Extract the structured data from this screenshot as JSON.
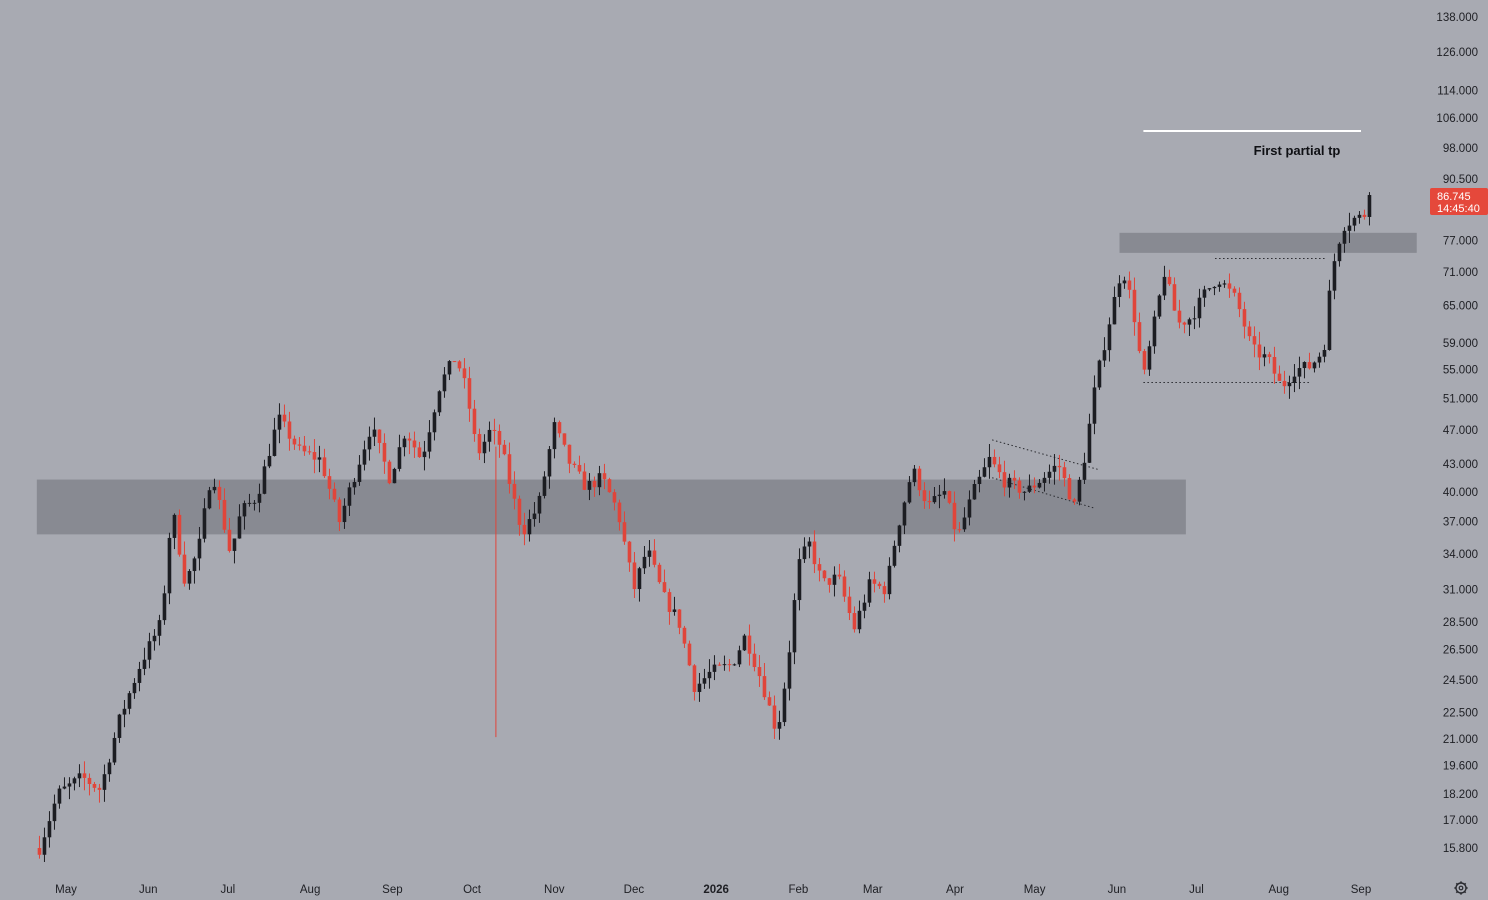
{
  "chart_data": {
    "type": "candlestick",
    "title": "",
    "xlabel": "",
    "ylabel": "",
    "y_scale": "log",
    "ylim": [
      14.5,
      142.0
    ],
    "x_tick_labels": [
      "May",
      "Jun",
      "Jul",
      "Aug",
      "Sep",
      "Oct",
      "Nov",
      "Dec",
      "2026",
      "Feb",
      "Mar",
      "Apr",
      "May",
      "Jun",
      "Jul",
      "Aug",
      "Sep"
    ],
    "x_tick_bold": "2026",
    "y_tick_labels": [
      "138.000",
      "126.000",
      "114.000",
      "106.000",
      "98.000",
      "90.500",
      "77.000",
      "71.000",
      "65.000",
      "59.000",
      "55.000",
      "51.000",
      "47.000",
      "43.000",
      "40.000",
      "37.000",
      "34.000",
      "31.000",
      "28.500",
      "26.500",
      "24.500",
      "22.500",
      "21.000",
      "19.600",
      "18.200",
      "17.000",
      "15.800"
    ],
    "last_price": "86.745",
    "countdown": "14:45:40",
    "series": [
      {
        "type": "candlestick",
        "up_color": "#1c1d22",
        "down_color": "#e0453a",
        "anchors": [
          {
            "date": "Apr 21 2025",
            "close": 15.8
          },
          {
            "date": "Apr 28 2025",
            "close": 18.2
          },
          {
            "date": "May 07 2025",
            "close": 19.0
          },
          {
            "date": "May 14 2025",
            "close": 18.4
          },
          {
            "date": "May 21 2025",
            "close": 22.0
          },
          {
            "date": "May 29 2025",
            "close": 25.5
          },
          {
            "date": "Jun 06 2025",
            "close": 28.5
          },
          {
            "date": "Jun 10 2025",
            "close": 38.5
          },
          {
            "date": "Jun 15 2025",
            "close": 31.5
          },
          {
            "date": "Jun 20 2025",
            "close": 34.5
          },
          {
            "date": "Jun 25 2025",
            "close": 42.5
          },
          {
            "date": "Jul 02 2025",
            "close": 34.0
          },
          {
            "date": "Jul 06 2025",
            "close": 38.0
          },
          {
            "date": "Jul 12 2025",
            "close": 39.5
          },
          {
            "date": "Jul 20 2025",
            "close": 48.5
          },
          {
            "date": "Jul 28 2025",
            "close": 44.5
          },
          {
            "date": "Aug 05 2025",
            "close": 43.5
          },
          {
            "date": "Aug 12 2025",
            "close": 37.0
          },
          {
            "date": "Aug 18 2025",
            "close": 42.0
          },
          {
            "date": "Aug 24 2025",
            "close": 47.5
          },
          {
            "date": "Aug 31 2025",
            "close": 41.5
          },
          {
            "date": "Sep 06 2025",
            "close": 47.0
          },
          {
            "date": "Sep 12 2025",
            "close": 43.5
          },
          {
            "date": "Sep 19 2025",
            "close": 53.0
          },
          {
            "date": "Sep 25 2025",
            "close": 57.0
          },
          {
            "date": "Sep 29 2025",
            "close": 52.0
          },
          {
            "date": "Oct 03 2025",
            "close": 44.0
          },
          {
            "date": "Oct 08 2025",
            "close": 47.0
          },
          {
            "date": "Oct 12 2025",
            "close": 45.0
          },
          {
            "date": "Oct 16 2025",
            "close": 40.0
          },
          {
            "date": "Oct 20 2025",
            "close": 36.0
          },
          {
            "date": "Oct 26 2025",
            "close": 38.5
          },
          {
            "date": "Nov 01 2025",
            "close": 47.5
          },
          {
            "date": "Nov 07 2025",
            "close": 43.0
          },
          {
            "date": "Nov 13 2025",
            "close": 40.5
          },
          {
            "date": "Nov 19 2025",
            "close": 41.5
          },
          {
            "date": "Nov 25 2025",
            "close": 38.0
          },
          {
            "date": "Dec 01 2025",
            "close": 31.0
          },
          {
            "date": "Dec 06 2025",
            "close": 34.5
          },
          {
            "date": "Dec 12 2025",
            "close": 30.5
          },
          {
            "date": "Dec 18 2025",
            "close": 28.5
          },
          {
            "date": "Dec 24 2025",
            "close": 24.0
          },
          {
            "date": "Dec 30 2025",
            "close": 25.0
          },
          {
            "date": "Jan 07 2026",
            "close": 25.5
          },
          {
            "date": "Jan 12 2026",
            "close": 27.5
          },
          {
            "date": "Jan 18 2026",
            "close": 24.5
          },
          {
            "date": "Jan 24 2026",
            "close": 21.3
          },
          {
            "date": "Jan 28 2026",
            "close": 25.5
          },
          {
            "date": "Feb 01 2026",
            "close": 33.0
          },
          {
            "date": "Feb 05 2026",
            "close": 35.0
          },
          {
            "date": "Feb 10 2026",
            "close": 31.5
          },
          {
            "date": "Feb 16 2026",
            "close": 32.0
          },
          {
            "date": "Feb 22 2026",
            "close": 28.0
          },
          {
            "date": "Feb 28 2026",
            "close": 31.5
          },
          {
            "date": "Mar 06 2026",
            "close": 31.0
          },
          {
            "date": "Mar 10 2026",
            "close": 36.0
          },
          {
            "date": "Mar 16 2026",
            "close": 42.5
          },
          {
            "date": "Mar 22 2026",
            "close": 38.5
          },
          {
            "date": "Mar 28 2026",
            "close": 40.0
          },
          {
            "date": "Apr 02 2026",
            "close": 35.5
          },
          {
            "date": "Apr 08 2026",
            "close": 40.0
          },
          {
            "date": "Apr 14 2026",
            "close": 43.5
          },
          {
            "date": "Apr 20 2026",
            "close": 41.0
          },
          {
            "date": "Apr 28 2026",
            "close": 40.0
          },
          {
            "date": "May 04 2026",
            "close": 41.5
          },
          {
            "date": "May 10 2026",
            "close": 43.0
          },
          {
            "date": "May 16 2026",
            "close": 38.5
          },
          {
            "date": "May 20 2026",
            "close": 44.0
          },
          {
            "date": "May 24 2026",
            "close": 53.0
          },
          {
            "date": "May 29 2026",
            "close": 62.0
          },
          {
            "date": "Jun 03 2026",
            "close": 72.0
          },
          {
            "date": "Jun 07 2026",
            "close": 65.0
          },
          {
            "date": "Jun 11 2026",
            "close": 53.5
          },
          {
            "date": "Jun 16 2026",
            "close": 64.0
          },
          {
            "date": "Jun 19 2026",
            "close": 71.0
          },
          {
            "date": "Jun 24 2026",
            "close": 62.0
          },
          {
            "date": "Jun 29 2026",
            "close": 63.0
          },
          {
            "date": "Jul 04 2026",
            "close": 67.0
          },
          {
            "date": "Jul 09 2026",
            "close": 70.0
          },
          {
            "date": "Jul 16 2026",
            "close": 66.0
          },
          {
            "date": "Jul 22 2026",
            "close": 58.0
          },
          {
            "date": "Jul 28 2026",
            "close": 56.5
          },
          {
            "date": "Aug 02 2026",
            "close": 52.5
          },
          {
            "date": "Aug 07 2026",
            "close": 55.0
          },
          {
            "date": "Aug 13 2026",
            "close": 55.5
          },
          {
            "date": "Aug 18 2026",
            "close": 58.0
          },
          {
            "date": "Aug 21 2026",
            "close": 71.0
          },
          {
            "date": "Aug 25 2026",
            "close": 80.0
          },
          {
            "date": "Aug 29 2026",
            "close": 81.5
          },
          {
            "date": "Sep 02 2026",
            "close": 82.0
          },
          {
            "date": "Sep 05 2026",
            "close": 86.745
          }
        ]
      }
    ],
    "zones": [
      {
        "name": "support-resistance-zone",
        "from_date": "Apr 20 2025",
        "to_date": "Jun 27 2026",
        "low": 35.8,
        "high": 41.3
      },
      {
        "name": "upper-resistance-zone",
        "from_date": "Jun 02 2026",
        "to_date": "Sep 22 2026",
        "low": 74.6,
        "high": 78.6
      }
    ],
    "lines": [
      {
        "name": "first-partial-tp-line",
        "from_date": "Jun 11 2026",
        "to_date": "Sep 01 2026",
        "price": 102.5,
        "style": "solid",
        "color": "#ffffff"
      },
      {
        "name": "range-high-dotted",
        "from_date": "Jul 08 2026",
        "to_date": "Aug 19 2026",
        "price": 73.5,
        "style": "dotted"
      },
      {
        "name": "range-low-dotted",
        "from_date": "Jun 11 2026",
        "to_date": "Aug 13 2026",
        "price": 53.2,
        "style": "dotted"
      },
      {
        "name": "wedge-top-dotted",
        "from_date": "Apr 15 2026",
        "to_date": "May 25 2026",
        "price_from": 45.8,
        "price_to": 42.4,
        "style": "dotted"
      },
      {
        "name": "wedge-bottom-dotted",
        "from_date": "Apr 15 2026",
        "to_date": "May 24 2026",
        "price_from": 41.5,
        "price_to": 38.3,
        "style": "dotted"
      }
    ],
    "annotations": [
      {
        "text": "First partial tp",
        "date": "Aug 31 2026",
        "price": 97.6
      }
    ]
  }
}
